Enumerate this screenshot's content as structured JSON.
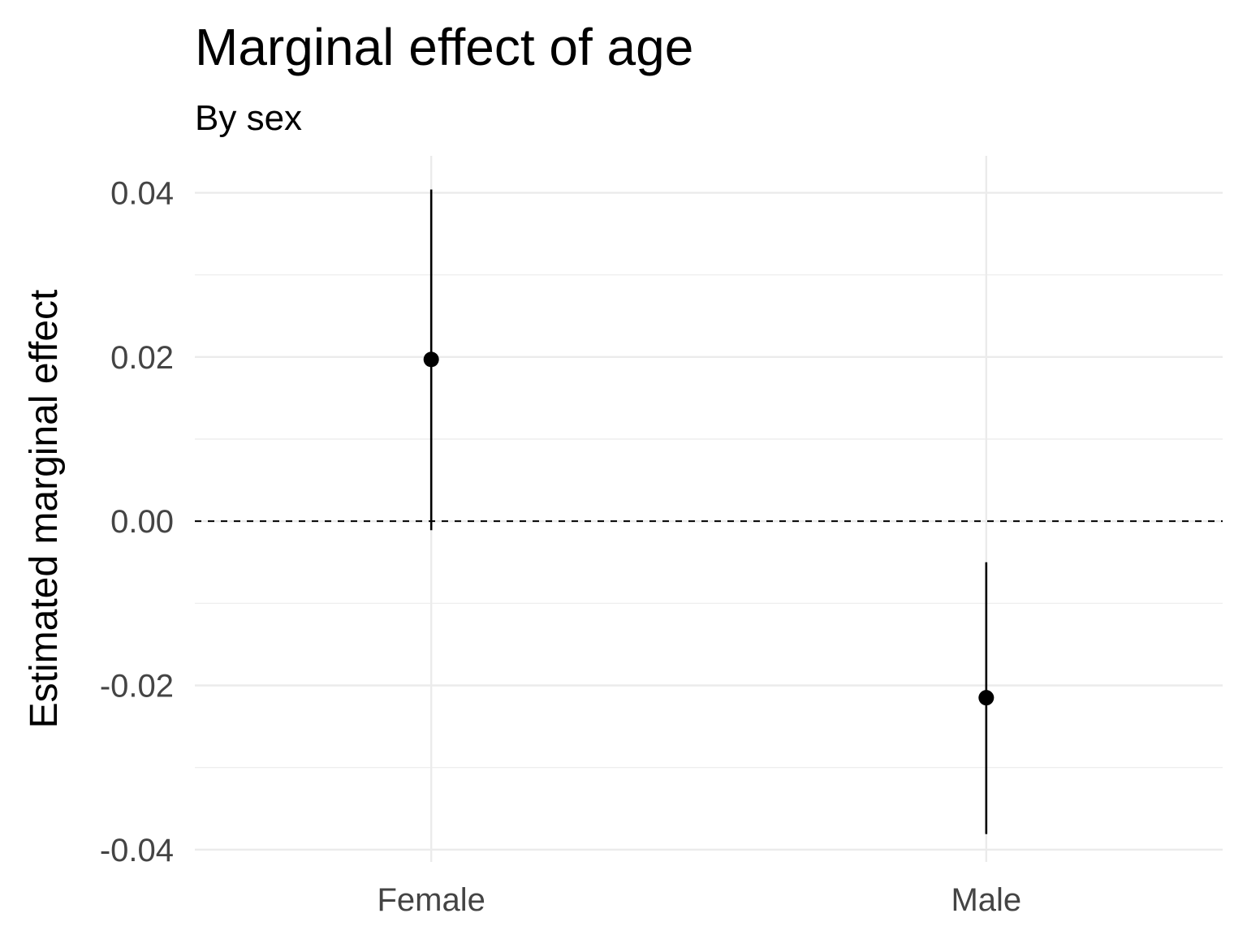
{
  "chart_data": {
    "type": "scatter",
    "title": "Marginal effect of age",
    "subtitle": "By sex",
    "xlabel": "",
    "ylabel": "Estimated marginal effect",
    "categories": [
      "Female",
      "Male"
    ],
    "series": [
      {
        "points": [
          {
            "category": "Female",
            "estimate": 0.0197,
            "lower": -0.0011,
            "upper": 0.0404
          },
          {
            "category": "Male",
            "estimate": -0.0215,
            "lower": -0.0381,
            "upper": -0.005
          }
        ]
      }
    ],
    "yticks": [
      "-0.04",
      "-0.02",
      "0.00",
      "0.02",
      "0.04"
    ],
    "ytick_values": [
      -0.04,
      -0.02,
      0.0,
      0.02,
      0.04
    ],
    "ylim": [
      -0.0415,
      0.0445
    ],
    "reference_line": {
      "y": 0.0,
      "style": "dashed"
    },
    "grid": true,
    "legend": "none",
    "colors": {
      "point": "#000000",
      "grid": "#ebebeb",
      "tick_text": "#444444"
    }
  }
}
